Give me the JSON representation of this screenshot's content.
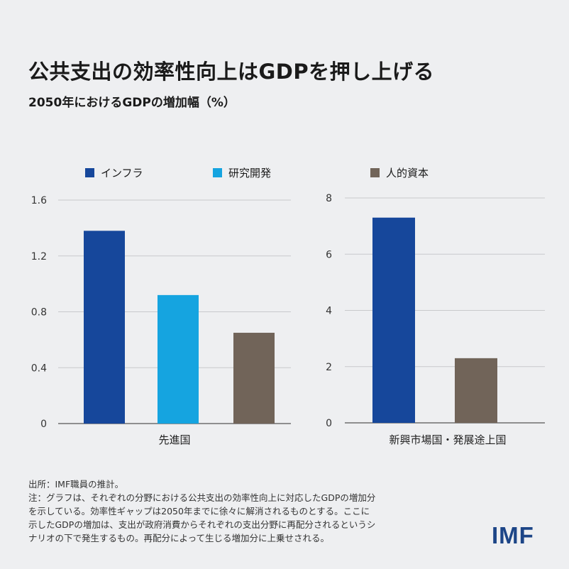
{
  "title": "公共支出の効率性向上はGDPを押し上げる",
  "subtitle": "2050年におけるGDPの増加幅（%）",
  "legend": [
    {
      "label": "インフラ",
      "color": "#16479b"
    },
    {
      "label": "研究開発",
      "color": "#15a4e0"
    },
    {
      "label": "人的資本",
      "color": "#716459"
    }
  ],
  "chart_data": [
    {
      "type": "bar",
      "xlabel": "先進国",
      "categories": [
        "インフラ",
        "研究開発",
        "人的資本"
      ],
      "values": [
        1.38,
        0.92,
        0.65
      ],
      "colors": [
        "#16479b",
        "#15a4e0",
        "#716459"
      ],
      "ylim": [
        0,
        1.6
      ],
      "yticks": [
        "0",
        "0.4",
        "0.8",
        "1.2",
        "1.6"
      ],
      "grid": true
    },
    {
      "type": "bar",
      "xlabel": "新興市場国・発展途上国",
      "categories": [
        "インフラ",
        "人的資本"
      ],
      "values": [
        7.3,
        2.3
      ],
      "colors": [
        "#16479b",
        "#716459"
      ],
      "ylim": [
        0,
        8
      ],
      "yticks": [
        "0",
        "2",
        "4",
        "6",
        "8"
      ],
      "grid": true
    }
  ],
  "source_lines": [
    "出所：IMF職員の推計。",
    "注：グラフは、それぞれの分野における公共支出の効率性向上に対応したGDPの増加分",
    "を示している。効率性ギャップは2050年までに徐々に解消されるものとする。ここに",
    "示したGDPの増加は、支出が政府消費からそれぞれの支出分野に再配分されるというシ",
    "ナリオの下で発生するもの。再配分によって生じる増加分に上乗せされる。"
  ],
  "logo": "IMF"
}
